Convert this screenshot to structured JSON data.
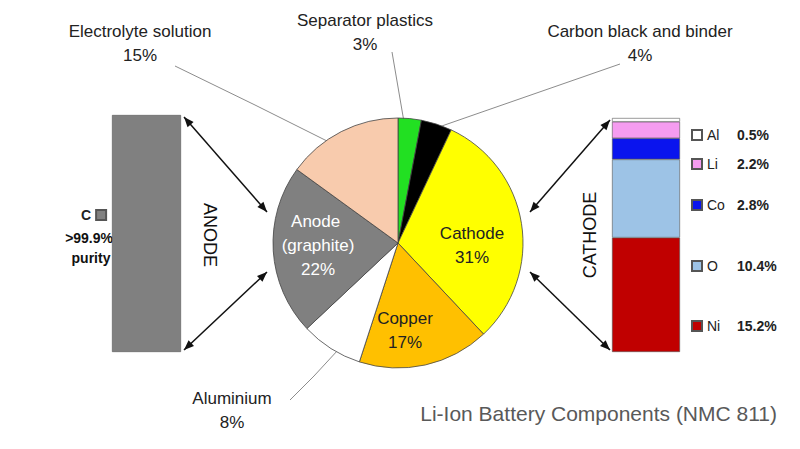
{
  "chart_data": [
    {
      "type": "pie",
      "title": "Li-Ion Battery Components (NMC 811)",
      "categories": [
        "Separator plastics",
        "Carbon black and binder",
        "Cathode",
        "Copper",
        "Aluminium",
        "Anode (graphite)",
        "Electrolyte solution"
      ],
      "values": [
        3,
        4,
        31,
        17,
        8,
        22,
        15
      ],
      "value_labels": [
        "3%",
        "4%",
        "31%",
        "17%",
        "8%",
        "22%",
        "15%"
      ],
      "colors": [
        "#22e022",
        "#000000",
        "#ffff00",
        "#ffc000",
        "#ffffff",
        "#808080",
        "#f8cbad"
      ],
      "data_labels": true
    },
    {
      "type": "bar",
      "title": "ANODE",
      "annotation": ">99.9% purity",
      "categories": [
        null
      ],
      "series": [
        {
          "name": "C",
          "color": "#808080",
          "values": [
            22
          ]
        }
      ],
      "ylim": [
        0,
        22
      ],
      "tick_labels": false,
      "legend": "left"
    },
    {
      "type": "bar",
      "title": "CATHODE",
      "stacked": true,
      "categories": [
        null
      ],
      "series": [
        {
          "name": "Ni",
          "color": "#c00000",
          "values": [
            15.2
          ],
          "value_labels": [
            "15.2%"
          ]
        },
        {
          "name": "O",
          "color": "#9dc3e6",
          "values": [
            10.4
          ],
          "value_labels": [
            "10.4%"
          ]
        },
        {
          "name": "Co",
          "color": "#0a14ee",
          "values": [
            2.8
          ],
          "value_labels": [
            "2.8%"
          ]
        },
        {
          "name": "Li",
          "color": "#f59cf0",
          "values": [
            2.2
          ],
          "value_labels": [
            "2.2%"
          ]
        },
        {
          "name": "Al",
          "color": "#ffffff",
          "values": [
            0.5
          ],
          "value_labels": [
            "0.5%"
          ]
        }
      ],
      "ylim": [
        0,
        31.1
      ],
      "tick_labels": false,
      "legend": "right"
    }
  ]
}
